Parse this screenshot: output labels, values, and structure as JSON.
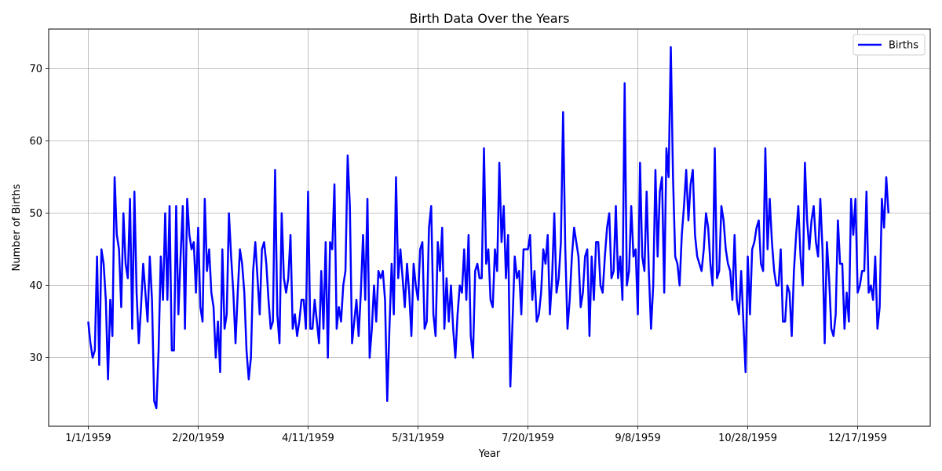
{
  "chart_data": {
    "type": "line",
    "title": "Birth Data Over the Years",
    "xlabel": "Year",
    "ylabel": "Number of Births",
    "x_start": "1959-01-01",
    "x_tick_labels": [
      "1/1/1959",
      "2/20/1959",
      "4/11/1959",
      "5/31/1959",
      "7/20/1959",
      "9/8/1959",
      "10/28/1959",
      "12/17/1959"
    ],
    "y_ticks": [
      30,
      40,
      50,
      60,
      70
    ],
    "xlim": [
      "1958-12-14",
      "1960-01-19"
    ],
    "ylim": [
      20.5,
      75.5
    ],
    "grid": true,
    "legend_position": "top-right",
    "series": [
      {
        "name": "Births",
        "color": "#0000ff",
        "values": [
          35,
          32,
          30,
          31,
          44,
          29,
          45,
          43,
          38,
          27,
          38,
          33,
          55,
          47,
          45,
          37,
          50,
          43,
          41,
          52,
          34,
          53,
          39,
          32,
          37,
          43,
          39,
          35,
          44,
          38,
          24,
          23,
          31,
          44,
          38,
          50,
          38,
          51,
          31,
          31,
          51,
          36,
          44,
          51,
          34,
          52,
          47,
          45,
          46,
          39,
          48,
          37,
          35,
          52,
          42,
          45,
          39,
          37,
          30,
          35,
          28,
          45,
          34,
          36,
          50,
          44,
          39,
          32,
          39,
          45,
          43,
          39,
          31,
          27,
          30,
          42,
          46,
          41,
          36,
          45,
          46,
          43,
          38,
          34,
          35,
          56,
          36,
          32,
          50,
          41,
          39,
          41,
          47,
          34,
          36,
          33,
          35,
          38,
          38,
          34,
          53,
          34,
          34,
          38,
          35,
          32,
          42,
          34,
          46,
          30,
          46,
          45,
          54,
          34,
          37,
          35,
          40,
          42,
          58,
          51,
          32,
          35,
          38,
          33,
          39,
          47,
          38,
          52,
          30,
          34,
          40,
          35,
          42,
          41,
          42,
          38,
          24,
          34,
          43,
          36,
          55,
          41,
          45,
          41,
          37,
          43,
          39,
          33,
          43,
          40,
          38,
          45,
          46,
          34,
          35,
          48,
          51,
          36,
          33,
          46,
          42,
          48,
          34,
          41,
          35,
          40,
          34,
          30,
          36,
          40,
          39,
          45,
          38,
          47,
          33,
          30,
          42,
          43,
          41,
          41,
          59,
          43,
          45,
          38,
          37,
          45,
          42,
          57,
          46,
          51,
          41,
          47,
          26,
          35,
          44,
          41,
          42,
          36,
          45,
          45,
          45,
          47,
          38,
          42,
          35,
          36,
          39,
          45,
          43,
          47,
          36,
          41,
          50,
          39,
          41,
          46,
          64,
          45,
          34,
          38,
          44,
          48,
          46,
          44,
          37,
          39,
          44,
          45,
          33,
          44,
          38,
          46,
          46,
          40,
          39,
          44,
          48,
          50,
          41,
          42,
          51,
          41,
          44,
          38,
          68,
          40,
          42,
          51,
          44,
          45,
          36,
          57,
          44,
          42,
          53,
          42,
          34,
          40,
          56,
          44,
          53,
          55,
          39,
          59,
          55,
          73,
          55,
          44,
          43,
          40,
          47,
          51,
          56,
          49,
          54,
          56,
          47,
          44,
          43,
          42,
          45,
          50,
          48,
          43,
          40,
          59,
          41,
          42,
          51,
          49,
          45,
          43,
          42,
          38,
          47,
          38,
          36,
          42,
          35,
          28,
          44,
          36,
          45,
          46,
          48,
          49,
          43,
          42,
          59,
          45,
          52,
          46,
          42,
          40,
          40,
          45,
          35,
          35,
          40,
          39,
          33,
          42,
          47,
          51,
          44,
          40,
          57,
          49,
          45,
          49,
          51,
          46,
          44,
          52,
          45,
          32,
          46,
          41,
          34,
          33,
          36,
          49,
          43,
          43,
          34,
          39,
          35,
          52,
          47,
          52,
          39,
          40,
          42,
          42,
          53,
          39,
          40,
          38,
          44,
          34,
          37,
          52,
          48,
          55,
          50
        ]
      }
    ]
  }
}
